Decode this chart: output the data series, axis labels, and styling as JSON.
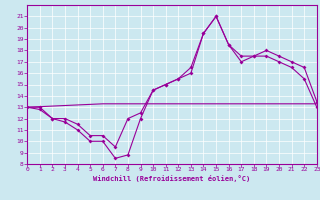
{
  "xlabel": "Windchill (Refroidissement éolien,°C)",
  "background_color": "#cce8f0",
  "line_color": "#990099",
  "hours": [
    0,
    1,
    2,
    3,
    4,
    5,
    6,
    7,
    8,
    9,
    10,
    11,
    12,
    13,
    14,
    15,
    16,
    17,
    18,
    19,
    20,
    21,
    22,
    23
  ],
  "windchill": [
    13,
    12.8,
    12,
    11.7,
    11,
    10,
    10,
    8.5,
    8.8,
    12,
    14.5,
    15,
    15.5,
    16,
    19.5,
    21,
    18.5,
    17,
    17.5,
    17.5,
    17,
    16.5,
    15.5,
    13
  ],
  "temp": [
    13,
    13,
    12,
    12,
    11.5,
    10.5,
    10.5,
    9.5,
    12,
    12.5,
    14.5,
    15,
    15.5,
    16.5,
    19.5,
    21,
    18.5,
    17.5,
    17.5,
    18,
    17.5,
    17,
    16.5,
    13.5
  ],
  "trend": [
    13,
    13.05,
    13.1,
    13.15,
    13.2,
    13.25,
    13.3,
    13.3,
    13.3,
    13.3,
    13.3,
    13.3,
    13.3,
    13.3,
    13.3,
    13.3,
    13.3,
    13.3,
    13.3,
    13.3,
    13.3,
    13.3,
    13.3,
    13.3
  ],
  "ylim": [
    8,
    22
  ],
  "xlim": [
    0,
    23
  ],
  "yticks": [
    8,
    9,
    10,
    11,
    12,
    13,
    14,
    15,
    16,
    17,
    18,
    19,
    20,
    21
  ],
  "xticks": [
    0,
    1,
    2,
    3,
    4,
    5,
    6,
    7,
    8,
    9,
    10,
    11,
    12,
    13,
    14,
    15,
    16,
    17,
    18,
    19,
    20,
    21,
    22,
    23
  ]
}
